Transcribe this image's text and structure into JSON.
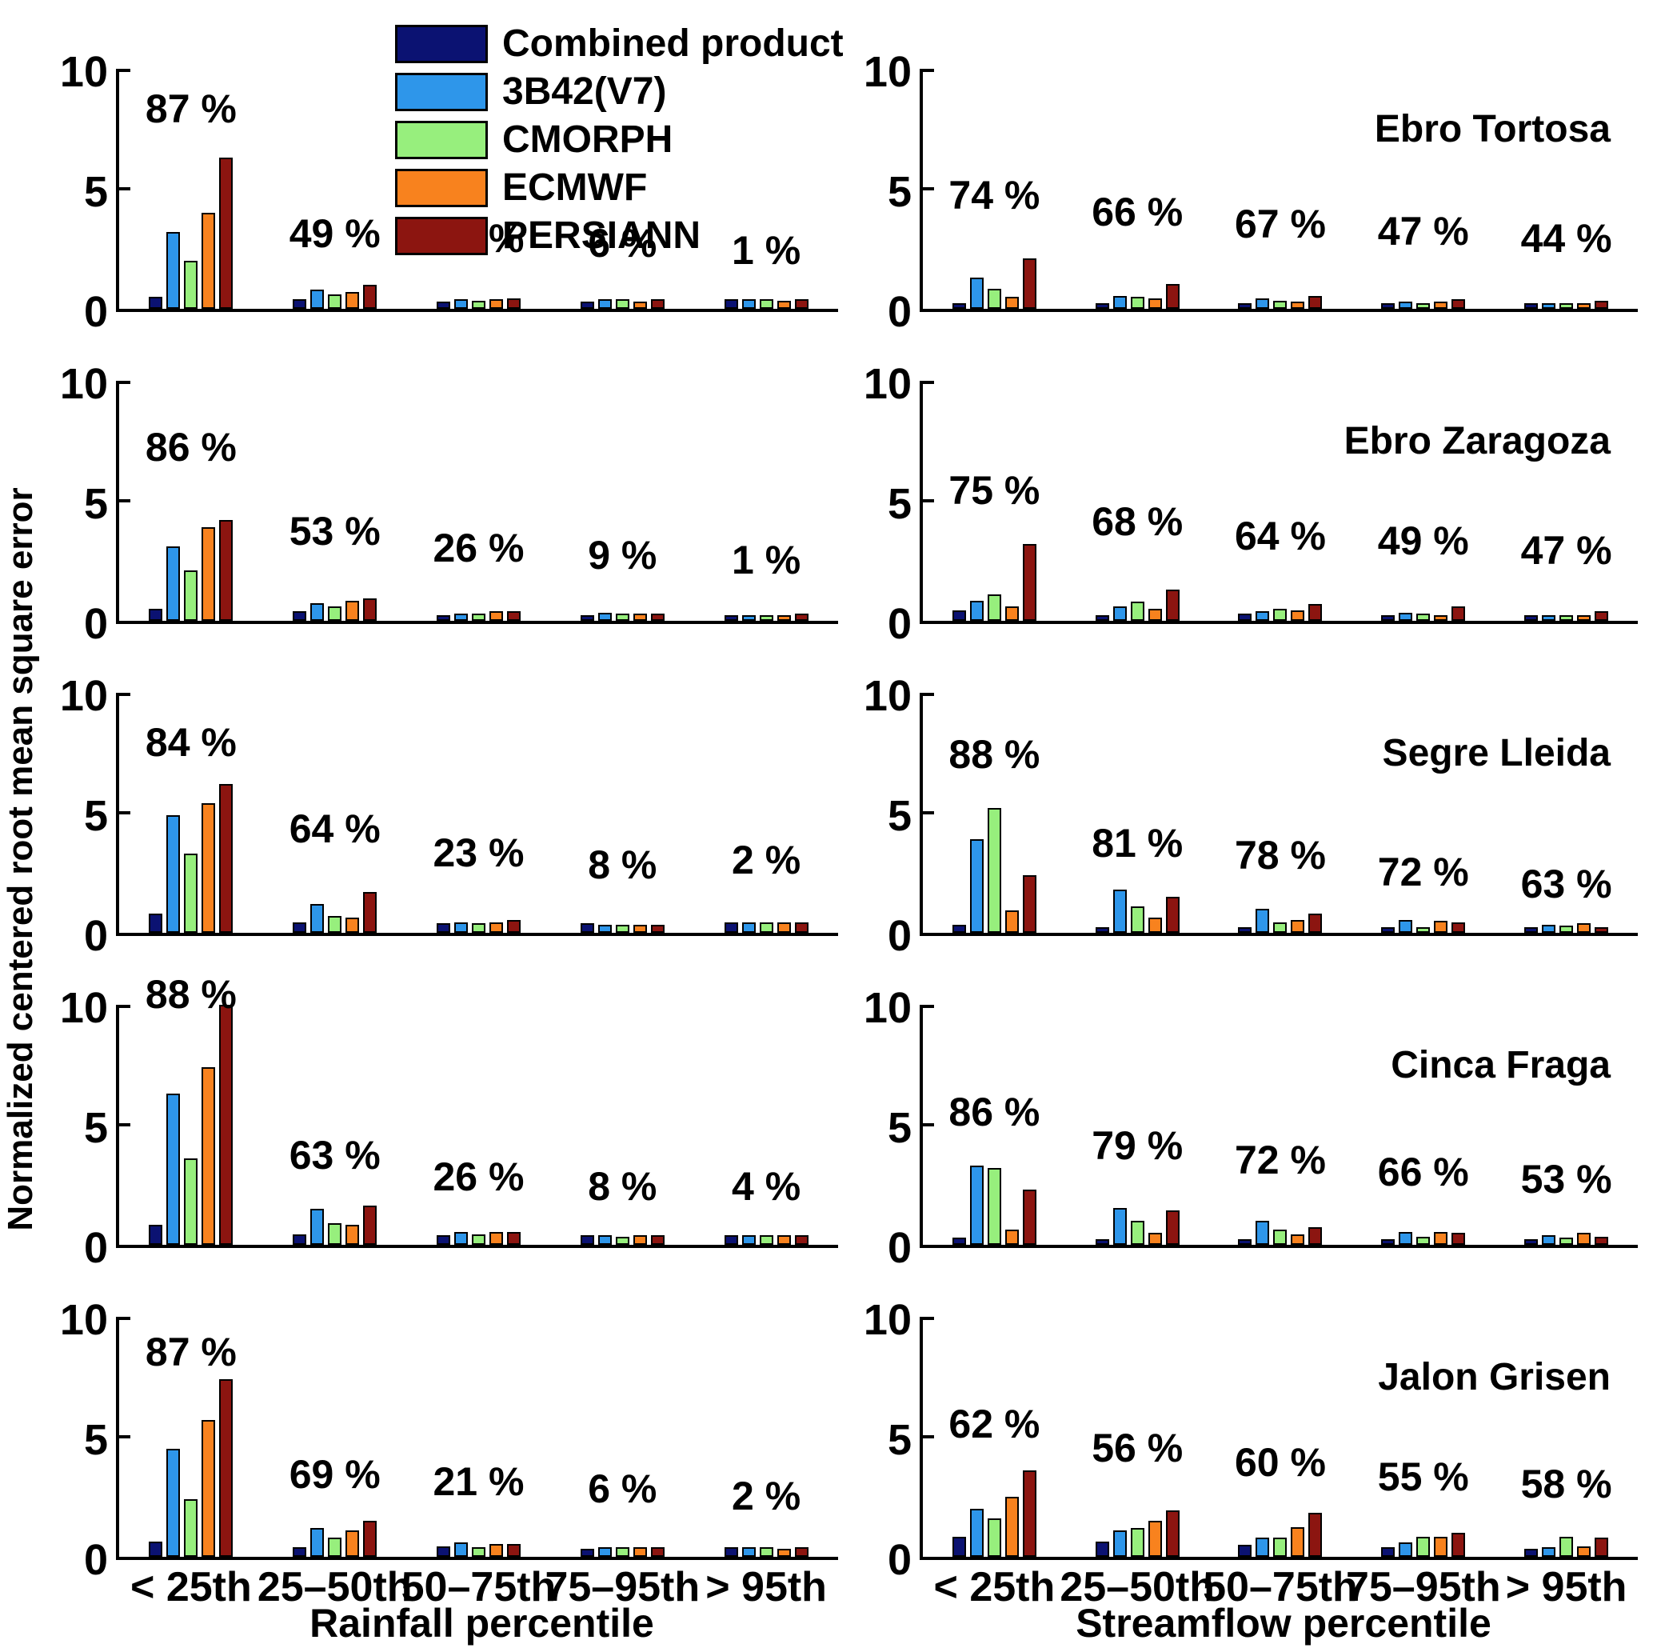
{
  "figure": {
    "y_axis_label": "Normalized centered root mean square error",
    "x_axis_label_left": "Rainfall percentile",
    "x_axis_label_right": "Streamflow percentile",
    "ylim": [
      0,
      10
    ],
    "y_ticks": [
      "0",
      "5",
      "10"
    ],
    "grid": "off",
    "categories": [
      "< 25th",
      "25–50th",
      "50–75th",
      "75–95th",
      "> 95th"
    ],
    "stations": [
      "Ebro Tortosa",
      "Ebro Zaragoza",
      "Segre Lleida",
      "Cinca Fraga",
      "Jalon Grisen"
    ]
  },
  "legend": {
    "position": "top-left-overlay",
    "entries": [
      {
        "label": "Combined product",
        "color": "#0b1272"
      },
      {
        "label": "3B42(V7)",
        "color": "#2e96ea"
      },
      {
        "label": "CMORPH",
        "color": "#97ef7d"
      },
      {
        "label": "ECMWF",
        "color": "#f8821e"
      },
      {
        "label": "PERSIANN",
        "color": "#8c1510"
      }
    ]
  },
  "chart_data": [
    {
      "type": "bar",
      "station": "Ebro Tortosa",
      "percentile_type": "Rainfall",
      "row": 0,
      "col": 0,
      "categories": [
        "< 25th",
        "25–50th",
        "50–75th",
        "75–95th",
        "> 95th"
      ],
      "group_percentages": [
        "87 %",
        "49 %",
        "20 %",
        "6 %",
        "1 %"
      ],
      "label_y": [
        7.5,
        2.3,
        2.1,
        1.9,
        1.6
      ],
      "series": [
        {
          "name": "Combined product",
          "values": [
            0.5,
            0.4,
            0.3,
            0.3,
            0.4
          ]
        },
        {
          "name": "3B42(V7)",
          "values": [
            3.2,
            0.8,
            0.4,
            0.4,
            0.4
          ]
        },
        {
          "name": "CMORPH",
          "values": [
            2.0,
            0.6,
            0.35,
            0.4,
            0.4
          ]
        },
        {
          "name": "ECMWF",
          "values": [
            4.0,
            0.7,
            0.4,
            0.3,
            0.35
          ]
        },
        {
          "name": "PERSIANN",
          "values": [
            6.3,
            1.0,
            0.45,
            0.4,
            0.4
          ]
        }
      ]
    },
    {
      "type": "bar",
      "station": "Ebro Tortosa",
      "percentile_type": "Streamflow",
      "row": 0,
      "col": 1,
      "categories": [
        "< 25th",
        "25–50th",
        "50–75th",
        "75–95th",
        "> 95th"
      ],
      "group_percentages": [
        "74 %",
        "66 %",
        "67 %",
        "47 %",
        "44 %"
      ],
      "label_y": [
        3.9,
        3.2,
        2.7,
        2.4,
        2.1
      ],
      "series": [
        {
          "name": "Combined product",
          "values": [
            0.25,
            0.2,
            0.15,
            0.15,
            0.15
          ]
        },
        {
          "name": "3B42(V7)",
          "values": [
            1.3,
            0.55,
            0.45,
            0.3,
            0.25
          ]
        },
        {
          "name": "CMORPH",
          "values": [
            0.85,
            0.5,
            0.35,
            0.2,
            0.15
          ]
        },
        {
          "name": "ECMWF",
          "values": [
            0.5,
            0.45,
            0.3,
            0.3,
            0.25
          ]
        },
        {
          "name": "PERSIANN",
          "values": [
            2.1,
            1.05,
            0.55,
            0.4,
            0.35
          ]
        }
      ]
    },
    {
      "type": "bar",
      "station": "Ebro Zaragoza",
      "percentile_type": "Rainfall",
      "row": 1,
      "col": 0,
      "categories": [
        "< 25th",
        "25–50th",
        "50–75th",
        "75–95th",
        "> 95th"
      ],
      "group_percentages": [
        "86 %",
        "53 %",
        "26 %",
        "9 %",
        "1 %"
      ],
      "label_y": [
        6.4,
        2.9,
        2.2,
        1.9,
        1.7
      ],
      "series": [
        {
          "name": "Combined product",
          "values": [
            0.5,
            0.4,
            0.25,
            0.25,
            0.25
          ]
        },
        {
          "name": "3B42(V7)",
          "values": [
            3.1,
            0.75,
            0.3,
            0.35,
            0.25
          ]
        },
        {
          "name": "CMORPH",
          "values": [
            2.1,
            0.6,
            0.3,
            0.3,
            0.25
          ]
        },
        {
          "name": "ECMWF",
          "values": [
            3.9,
            0.85,
            0.4,
            0.3,
            0.25
          ]
        },
        {
          "name": "PERSIANN",
          "values": [
            4.2,
            0.95,
            0.4,
            0.3,
            0.3
          ]
        }
      ]
    },
    {
      "type": "bar",
      "station": "Ebro Zaragoza",
      "percentile_type": "Streamflow",
      "row": 1,
      "col": 1,
      "categories": [
        "< 25th",
        "25–50th",
        "50–75th",
        "75–95th",
        "> 95th"
      ],
      "group_percentages": [
        "75 %",
        "68 %",
        "64 %",
        "49 %",
        "47 %"
      ],
      "label_y": [
        4.6,
        3.3,
        2.7,
        2.5,
        2.1
      ],
      "series": [
        {
          "name": "Combined product",
          "values": [
            0.45,
            0.2,
            0.3,
            0.25,
            0.2
          ]
        },
        {
          "name": "3B42(V7)",
          "values": [
            0.85,
            0.6,
            0.4,
            0.35,
            0.25
          ]
        },
        {
          "name": "CMORPH",
          "values": [
            1.1,
            0.8,
            0.5,
            0.3,
            0.25
          ]
        },
        {
          "name": "ECMWF",
          "values": [
            0.6,
            0.5,
            0.45,
            0.2,
            0.25
          ]
        },
        {
          "name": "PERSIANN",
          "values": [
            3.2,
            1.3,
            0.7,
            0.6,
            0.4
          ]
        }
      ]
    },
    {
      "type": "bar",
      "station": "Segre Lleida",
      "percentile_type": "Rainfall",
      "row": 2,
      "col": 0,
      "categories": [
        "< 25th",
        "25–50th",
        "50–75th",
        "75–95th",
        "> 95th"
      ],
      "group_percentages": [
        "84 %",
        "64 %",
        "23 %",
        "8 %",
        "2 %"
      ],
      "label_y": [
        7.1,
        3.5,
        2.5,
        2.0,
        2.2
      ],
      "series": [
        {
          "name": "Combined product",
          "values": [
            0.8,
            0.45,
            0.4,
            0.4,
            0.45
          ]
        },
        {
          "name": "3B42(V7)",
          "values": [
            4.9,
            1.2,
            0.45,
            0.35,
            0.45
          ]
        },
        {
          "name": "CMORPH",
          "values": [
            3.3,
            0.7,
            0.4,
            0.35,
            0.45
          ]
        },
        {
          "name": "ECMWF",
          "values": [
            5.4,
            0.65,
            0.45,
            0.35,
            0.45
          ]
        },
        {
          "name": "PERSIANN",
          "values": [
            6.2,
            1.7,
            0.55,
            0.35,
            0.45
          ]
        }
      ]
    },
    {
      "type": "bar",
      "station": "Segre Lleida",
      "percentile_type": "Streamflow",
      "row": 2,
      "col": 1,
      "categories": [
        "< 25th",
        "25–50th",
        "50–75th",
        "75–95th",
        "> 95th"
      ],
      "group_percentages": [
        "88 %",
        "81 %",
        "78 %",
        "72 %",
        "63 %"
      ],
      "label_y": [
        6.6,
        2.9,
        2.4,
        1.7,
        1.2
      ],
      "series": [
        {
          "name": "Combined product",
          "values": [
            0.35,
            0.2,
            0.1,
            0.15,
            0.1
          ]
        },
        {
          "name": "3B42(V7)",
          "values": [
            3.9,
            1.8,
            1.0,
            0.55,
            0.35
          ]
        },
        {
          "name": "CMORPH",
          "values": [
            5.2,
            1.1,
            0.45,
            0.25,
            0.3
          ]
        },
        {
          "name": "ECMWF",
          "values": [
            0.95,
            0.65,
            0.55,
            0.5,
            0.4
          ]
        },
        {
          "name": "PERSIANN",
          "values": [
            2.4,
            1.5,
            0.8,
            0.45,
            0.2
          ]
        }
      ]
    },
    {
      "type": "bar",
      "station": "Cinca Fraga",
      "percentile_type": "Rainfall",
      "row": 3,
      "col": 0,
      "categories": [
        "< 25th",
        "25–50th",
        "50–75th",
        "75–95th",
        "> 95th"
      ],
      "group_percentages": [
        "88 %",
        "63 %",
        "26 %",
        "8 %",
        "4 %"
      ],
      "label_y": [
        9.7,
        2.9,
        2.0,
        1.6,
        1.6
      ],
      "series": [
        {
          "name": "Combined product",
          "values": [
            0.85,
            0.45,
            0.4,
            0.4,
            0.4
          ]
        },
        {
          "name": "3B42(V7)",
          "values": [
            6.3,
            1.5,
            0.55,
            0.4,
            0.4
          ]
        },
        {
          "name": "CMORPH",
          "values": [
            3.6,
            0.9,
            0.45,
            0.35,
            0.4
          ]
        },
        {
          "name": "ECMWF",
          "values": [
            7.4,
            0.85,
            0.55,
            0.4,
            0.4
          ]
        },
        {
          "name": "PERSIANN",
          "values": [
            10.0,
            1.65,
            0.55,
            0.4,
            0.4
          ]
        }
      ]
    },
    {
      "type": "bar",
      "station": "Cinca Fraga",
      "percentile_type": "Streamflow",
      "row": 3,
      "col": 1,
      "categories": [
        "< 25th",
        "25–50th",
        "50–75th",
        "75–95th",
        "> 95th"
      ],
      "group_percentages": [
        "86 %",
        "79 %",
        "72 %",
        "66 %",
        "53 %"
      ],
      "label_y": [
        4.7,
        3.3,
        2.7,
        2.2,
        1.9
      ],
      "series": [
        {
          "name": "Combined product",
          "values": [
            0.3,
            0.25,
            0.25,
            0.15,
            0.25
          ]
        },
        {
          "name": "3B42(V7)",
          "values": [
            3.3,
            1.55,
            1.0,
            0.55,
            0.4
          ]
        },
        {
          "name": "CMORPH",
          "values": [
            3.2,
            1.0,
            0.65,
            0.35,
            0.3
          ]
        },
        {
          "name": "ECMWF",
          "values": [
            0.65,
            0.5,
            0.45,
            0.55,
            0.5
          ]
        },
        {
          "name": "PERSIANN",
          "values": [
            2.3,
            1.45,
            0.75,
            0.5,
            0.35
          ]
        }
      ]
    },
    {
      "type": "bar",
      "station": "Jalon Grisen",
      "percentile_type": "Rainfall",
      "row": 4,
      "col": 0,
      "categories": [
        "< 25th",
        "25–50th",
        "50–75th",
        "75–95th",
        "> 95th"
      ],
      "group_percentages": [
        "87 %",
        "69 %",
        "21 %",
        "6 %",
        "2 %"
      ],
      "label_y": [
        7.7,
        2.6,
        2.3,
        2.0,
        1.7
      ],
      "series": [
        {
          "name": "Combined product",
          "values": [
            0.65,
            0.4,
            0.45,
            0.35,
            0.4
          ]
        },
        {
          "name": "3B42(V7)",
          "values": [
            4.5,
            1.2,
            0.6,
            0.4,
            0.4
          ]
        },
        {
          "name": "CMORPH",
          "values": [
            2.4,
            0.8,
            0.4,
            0.4,
            0.4
          ]
        },
        {
          "name": "ECMWF",
          "values": [
            5.7,
            1.1,
            0.55,
            0.4,
            0.35
          ]
        },
        {
          "name": "PERSIANN",
          "values": [
            7.4,
            1.5,
            0.55,
            0.4,
            0.4
          ]
        }
      ]
    },
    {
      "type": "bar",
      "station": "Jalon Grisen",
      "percentile_type": "Streamflow",
      "row": 4,
      "col": 1,
      "categories": [
        "< 25th",
        "25–50th",
        "50–75th",
        "75–95th",
        "> 95th"
      ],
      "group_percentages": [
        "62 %",
        "56 %",
        "60 %",
        "55 %",
        "58 %"
      ],
      "label_y": [
        4.7,
        3.7,
        3.1,
        2.5,
        2.2
      ],
      "series": [
        {
          "name": "Combined product",
          "values": [
            0.85,
            0.65,
            0.5,
            0.4,
            0.35
          ]
        },
        {
          "name": "3B42(V7)",
          "values": [
            2.0,
            1.1,
            0.8,
            0.6,
            0.4
          ]
        },
        {
          "name": "CMORPH",
          "values": [
            1.6,
            1.2,
            0.8,
            0.85,
            0.85
          ]
        },
        {
          "name": "ECMWF",
          "values": [
            2.5,
            1.5,
            1.25,
            0.85,
            0.45
          ]
        },
        {
          "name": "PERSIANN",
          "values": [
            3.6,
            1.95,
            1.85,
            1.0,
            0.8
          ]
        }
      ]
    }
  ]
}
